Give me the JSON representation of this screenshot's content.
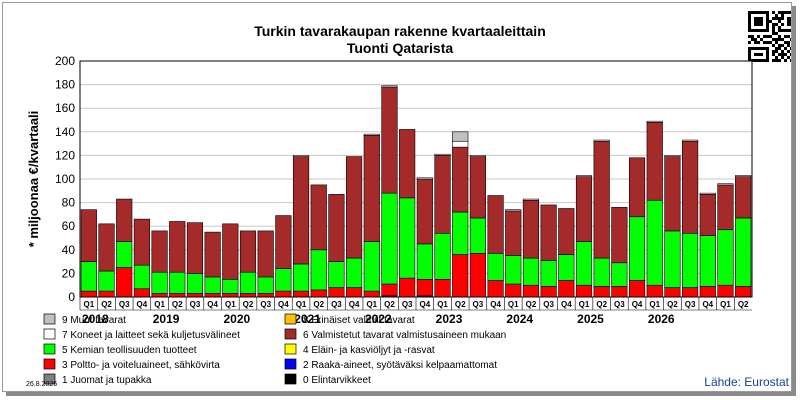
{
  "chart_data": {
    "type": "bar",
    "stacked": true,
    "title": "Turkin tavarakaupan rakenne kvartaaleittain",
    "subtitle": "Tuonti Qatarista",
    "ylabel": "* miljoonaa €/kvartaali",
    "ylim": [
      0,
      200
    ],
    "yticks": [
      0,
      20,
      40,
      60,
      80,
      100,
      120,
      140,
      160,
      180,
      200
    ],
    "grid": true,
    "categories": [
      "Q1",
      "Q2",
      "Q3",
      "Q4",
      "Q1",
      "Q2",
      "Q3",
      "Q4",
      "Q1",
      "Q2",
      "Q3",
      "Q4",
      "Q1",
      "Q2",
      "Q3",
      "Q4",
      "Q1",
      "Q2",
      "Q3",
      "Q4",
      "Q1",
      "Q2",
      "Q3",
      "Q4",
      "Q1",
      "Q2",
      "Q3",
      "Q4",
      "Q1",
      "Q2",
      "Q3",
      "Q4",
      "Q1",
      "Q2",
      "Q3",
      "Q4",
      "Q1",
      "Q2"
    ],
    "years": [
      "2018",
      "2019",
      "2020",
      "2021",
      "2022",
      "2023",
      "2024",
      "2025",
      "2026"
    ],
    "series": [
      {
        "name": "0 Elintarvikkeet",
        "color": "#000000",
        "values": [
          0,
          0,
          0,
          0,
          0,
          0,
          0,
          0,
          0,
          0,
          0,
          0,
          0,
          0,
          0,
          0,
          0,
          1,
          0,
          1,
          0,
          0,
          0,
          0,
          0,
          0,
          0,
          0,
          0,
          0,
          0,
          0,
          0,
          0,
          0,
          0,
          0,
          0
        ]
      },
      {
        "name": "1 Juomat ja tupakka",
        "color": "#808080",
        "values": [
          0,
          0,
          0,
          0,
          0,
          0,
          0,
          0,
          0,
          0,
          0,
          0,
          0,
          0,
          0,
          0,
          0,
          0,
          0,
          0,
          0,
          0,
          0,
          0,
          0,
          0,
          0,
          0,
          0,
          0,
          0,
          0,
          0,
          0,
          0,
          0,
          0,
          0
        ]
      },
      {
        "name": "2 Raaka-aineet, syötäväksi kelpaamattomat",
        "color": "#0000ff",
        "values": [
          0,
          0,
          0,
          0,
          0,
          0,
          0,
          0,
          0,
          0,
          0,
          0,
          0,
          0,
          0,
          0,
          0,
          0,
          0,
          0,
          0,
          0,
          0,
          0,
          0,
          0,
          0,
          0,
          0,
          0,
          0,
          0,
          0,
          0,
          0,
          0,
          0,
          0
        ]
      },
      {
        "name": "3 Poltto- ja voiteluaineet, sähkövirta",
        "color": "#ff0000",
        "values": [
          5,
          5,
          25,
          7,
          3,
          3,
          3,
          3,
          3,
          3,
          3,
          5,
          5,
          6,
          8,
          8,
          5,
          10,
          16,
          14,
          15,
          36,
          37,
          14,
          11,
          10,
          9,
          14,
          10,
          9,
          9,
          14,
          10,
          8,
          8,
          9,
          10,
          9
        ]
      },
      {
        "name": "4 Eläin- ja kasviöljyt ja -rasvat",
        "color": "#ffff00",
        "values": [
          0,
          0,
          0,
          0,
          0,
          0,
          0,
          0,
          0,
          0,
          0,
          0,
          0,
          0,
          0,
          0,
          0,
          0,
          0,
          0,
          0,
          0,
          0,
          0,
          0,
          0,
          0,
          0,
          0,
          0,
          0,
          0,
          0,
          0,
          0,
          0,
          0,
          0
        ]
      },
      {
        "name": "5 Kemian teollisuuden tuotteet",
        "color": "#00ff00",
        "values": [
          25,
          17,
          22,
          20,
          18,
          18,
          17,
          14,
          12,
          18,
          14,
          19,
          23,
          34,
          22,
          25,
          42,
          77,
          68,
          30,
          39,
          36,
          30,
          23,
          24,
          23,
          22,
          22,
          37,
          24,
          20,
          54,
          72,
          48,
          46,
          43,
          47,
          58
        ]
      },
      {
        "name": "6 Valmistetut tavarat valmistusaineen mukaan",
        "color": "#a52a2a",
        "values": [
          44,
          40,
          36,
          39,
          35,
          43,
          43,
          38,
          47,
          35,
          39,
          45,
          91,
          55,
          57,
          86,
          90,
          90,
          58,
          55,
          66,
          55,
          52,
          49,
          38,
          49,
          47,
          39,
          55,
          99,
          47,
          50,
          66,
          63,
          78,
          35,
          38,
          35
        ]
      },
      {
        "name": "7 Koneet ja laitteet sekä kuljetusvälineet",
        "color": "#ffffff",
        "values": [
          0,
          0,
          0,
          0,
          0,
          0,
          0,
          0,
          0,
          0,
          0,
          0,
          1,
          0,
          0,
          0,
          1,
          1,
          0,
          1,
          1,
          5,
          1,
          0,
          1,
          1,
          0,
          0,
          1,
          1,
          0,
          0,
          1,
          1,
          1,
          1,
          1,
          1
        ]
      },
      {
        "name": "8 Erinäiset valmiit tavarat",
        "color": "#ffc000",
        "values": [
          0,
          0,
          0,
          0,
          0,
          0,
          0,
          0,
          0,
          0,
          0,
          0,
          0,
          0,
          0,
          0,
          0,
          0,
          0,
          0,
          0,
          0,
          0,
          0,
          0,
          0,
          0,
          0,
          0,
          0,
          0,
          0,
          0,
          0,
          0,
          0,
          0,
          0
        ]
      },
      {
        "name": "9 Muut tavarat",
        "color": "#c0c0c0",
        "values": [
          0,
          0,
          0,
          0,
          0,
          0,
          0,
          0,
          0,
          0,
          0,
          0,
          0,
          0,
          0,
          0,
          0,
          0,
          0,
          0,
          0,
          8,
          0,
          0,
          0,
          0,
          0,
          0,
          0,
          0,
          0,
          0,
          0,
          0,
          0,
          0,
          0,
          0
        ]
      }
    ],
    "legend": [
      {
        "label": "9 Muut tavarat",
        "color": "#c0c0c0"
      },
      {
        "label": "8 Erinäiset valmiit tavarat",
        "color": "#ffc000"
      },
      {
        "label": "7 Koneet ja laitteet sekä kuljetusvälineet",
        "color": "#ffffff"
      },
      {
        "label": "6 Valmistetut tavarat valmistusaineen mukaan",
        "color": "#a52a2a"
      },
      {
        "label": "5 Kemian teollisuuden tuotteet",
        "color": "#00ff00"
      },
      {
        "label": "4 Eläin- ja kasviöljyt ja -rasvat",
        "color": "#ffff00"
      },
      {
        "label": "3 Poltto- ja voiteluaineet, sähkövirta",
        "color": "#ff0000"
      },
      {
        "label": "2 Raaka-aineet, syötäväksi kelpaamattomat",
        "color": "#0000ff"
      },
      {
        "label": "1 Juomat ja tupakka",
        "color": "#808080"
      },
      {
        "label": "0 Elintarvikkeet",
        "color": "#000000"
      }
    ],
    "legend_placement": "bottom"
  },
  "source": "Lähde: Eurostat",
  "date": "26.8.2026"
}
